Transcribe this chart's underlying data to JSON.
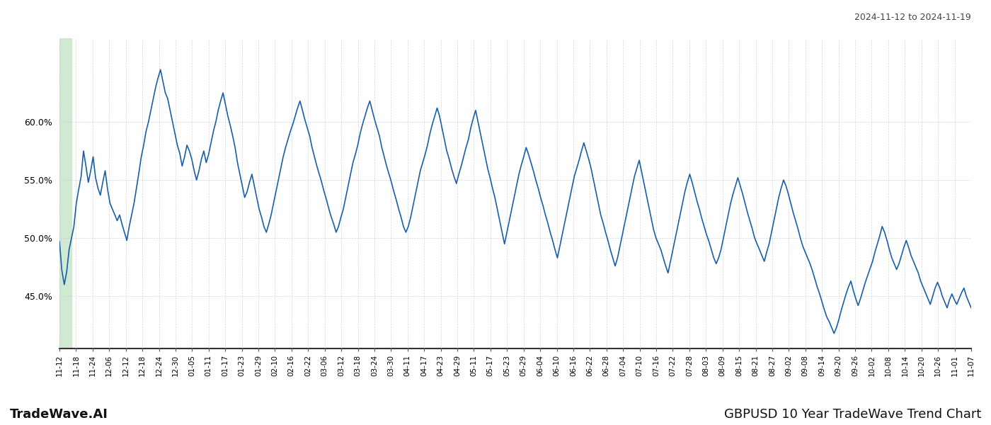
{
  "title_right": "2024-11-12 to 2024-11-19",
  "title_bottom_left": "TradeWave.AI",
  "title_bottom_right": "GBPUSD 10 Year TradeWave Trend Chart",
  "highlight_color": "#c8e6c9",
  "line_color": "#1a5fa8",
  "line_width": 1.2,
  "background_color": "#ffffff",
  "grid_color": "#cccccc",
  "ylim": [
    0.405,
    0.672
  ],
  "yticks": [
    0.45,
    0.5,
    0.55,
    0.6
  ],
  "x_labels": [
    "11-12",
    "11-18",
    "11-24",
    "12-06",
    "12-12",
    "12-18",
    "12-24",
    "12-30",
    "01-05",
    "01-11",
    "01-17",
    "01-23",
    "01-29",
    "02-10",
    "02-16",
    "02-22",
    "03-06",
    "03-12",
    "03-18",
    "03-24",
    "03-30",
    "04-11",
    "04-17",
    "04-23",
    "04-29",
    "05-11",
    "05-17",
    "05-23",
    "05-29",
    "06-04",
    "06-10",
    "06-16",
    "06-22",
    "06-28",
    "07-04",
    "07-10",
    "07-16",
    "07-22",
    "07-28",
    "08-03",
    "08-09",
    "08-15",
    "08-21",
    "08-27",
    "09-02",
    "09-08",
    "09-14",
    "09-20",
    "09-26",
    "10-02",
    "10-08",
    "10-14",
    "10-20",
    "10-26",
    "11-01",
    "11-07"
  ],
  "values": [
    0.497,
    0.472,
    0.46,
    0.471,
    0.49,
    0.5,
    0.51,
    0.53,
    0.542,
    0.553,
    0.575,
    0.562,
    0.548,
    0.558,
    0.57,
    0.552,
    0.543,
    0.537,
    0.548,
    0.558,
    0.542,
    0.53,
    0.525,
    0.52,
    0.515,
    0.52,
    0.512,
    0.505,
    0.498,
    0.51,
    0.52,
    0.53,
    0.543,
    0.556,
    0.57,
    0.58,
    0.592,
    0.6,
    0.61,
    0.62,
    0.63,
    0.638,
    0.645,
    0.635,
    0.625,
    0.62,
    0.61,
    0.6,
    0.59,
    0.58,
    0.573,
    0.562,
    0.57,
    0.58,
    0.575,
    0.568,
    0.558,
    0.55,
    0.558,
    0.568,
    0.575,
    0.565,
    0.572,
    0.582,
    0.592,
    0.6,
    0.61,
    0.618,
    0.625,
    0.615,
    0.605,
    0.597,
    0.588,
    0.578,
    0.565,
    0.555,
    0.545,
    0.535,
    0.54,
    0.548,
    0.555,
    0.545,
    0.535,
    0.525,
    0.518,
    0.51,
    0.505,
    0.512,
    0.52,
    0.53,
    0.54,
    0.55,
    0.56,
    0.57,
    0.578,
    0.585,
    0.592,
    0.598,
    0.605,
    0.612,
    0.618,
    0.61,
    0.602,
    0.595,
    0.588,
    0.578,
    0.57,
    0.562,
    0.555,
    0.548,
    0.54,
    0.533,
    0.525,
    0.518,
    0.512,
    0.505,
    0.51,
    0.518,
    0.525,
    0.535,
    0.545,
    0.555,
    0.565,
    0.572,
    0.58,
    0.59,
    0.598,
    0.605,
    0.612,
    0.618,
    0.61,
    0.602,
    0.595,
    0.588,
    0.578,
    0.57,
    0.562,
    0.555,
    0.548,
    0.54,
    0.533,
    0.525,
    0.518,
    0.51,
    0.505,
    0.51,
    0.518,
    0.528,
    0.538,
    0.548,
    0.558,
    0.565,
    0.572,
    0.58,
    0.59,
    0.598,
    0.605,
    0.612,
    0.605,
    0.595,
    0.585,
    0.575,
    0.568,
    0.56,
    0.553,
    0.547,
    0.555,
    0.562,
    0.57,
    0.578,
    0.585,
    0.595,
    0.603,
    0.61,
    0.6,
    0.59,
    0.58,
    0.57,
    0.56,
    0.552,
    0.543,
    0.535,
    0.525,
    0.515,
    0.505,
    0.495,
    0.505,
    0.515,
    0.525,
    0.535,
    0.545,
    0.555,
    0.563,
    0.57,
    0.578,
    0.572,
    0.565,
    0.558,
    0.55,
    0.543,
    0.535,
    0.528,
    0.52,
    0.513,
    0.505,
    0.498,
    0.49,
    0.483,
    0.493,
    0.503,
    0.513,
    0.523,
    0.533,
    0.543,
    0.553,
    0.56,
    0.567,
    0.575,
    0.582,
    0.575,
    0.568,
    0.56,
    0.55,
    0.54,
    0.53,
    0.52,
    0.513,
    0.505,
    0.498,
    0.49,
    0.483,
    0.476,
    0.483,
    0.493,
    0.503,
    0.513,
    0.523,
    0.533,
    0.543,
    0.553,
    0.56,
    0.567,
    0.557,
    0.547,
    0.537,
    0.527,
    0.517,
    0.507,
    0.5,
    0.495,
    0.49,
    0.483,
    0.476,
    0.47,
    0.48,
    0.49,
    0.5,
    0.51,
    0.52,
    0.53,
    0.54,
    0.548,
    0.555,
    0.548,
    0.54,
    0.532,
    0.525,
    0.517,
    0.51,
    0.503,
    0.497,
    0.49,
    0.483,
    0.478,
    0.483,
    0.49,
    0.5,
    0.51,
    0.52,
    0.53,
    0.538,
    0.545,
    0.552,
    0.545,
    0.538,
    0.53,
    0.522,
    0.515,
    0.508,
    0.5,
    0.495,
    0.49,
    0.485,
    0.48,
    0.488,
    0.495,
    0.505,
    0.515,
    0.525,
    0.535,
    0.543,
    0.55,
    0.545,
    0.538,
    0.53,
    0.522,
    0.515,
    0.508,
    0.5,
    0.493,
    0.488,
    0.483,
    0.478,
    0.472,
    0.465,
    0.458,
    0.452,
    0.445,
    0.438,
    0.432,
    0.428,
    0.423,
    0.418,
    0.423,
    0.43,
    0.438,
    0.445,
    0.452,
    0.458,
    0.463,
    0.455,
    0.448,
    0.442,
    0.448,
    0.455,
    0.462,
    0.468,
    0.474,
    0.48,
    0.488,
    0.495,
    0.502,
    0.51,
    0.505,
    0.498,
    0.49,
    0.483,
    0.478,
    0.473,
    0.478,
    0.485,
    0.492,
    0.498,
    0.492,
    0.485,
    0.48,
    0.475,
    0.47,
    0.463,
    0.458,
    0.453,
    0.448,
    0.443,
    0.45,
    0.457,
    0.462,
    0.457,
    0.45,
    0.445,
    0.44,
    0.447,
    0.452,
    0.447,
    0.443,
    0.448,
    0.453,
    0.457,
    0.45,
    0.445,
    0.44
  ]
}
